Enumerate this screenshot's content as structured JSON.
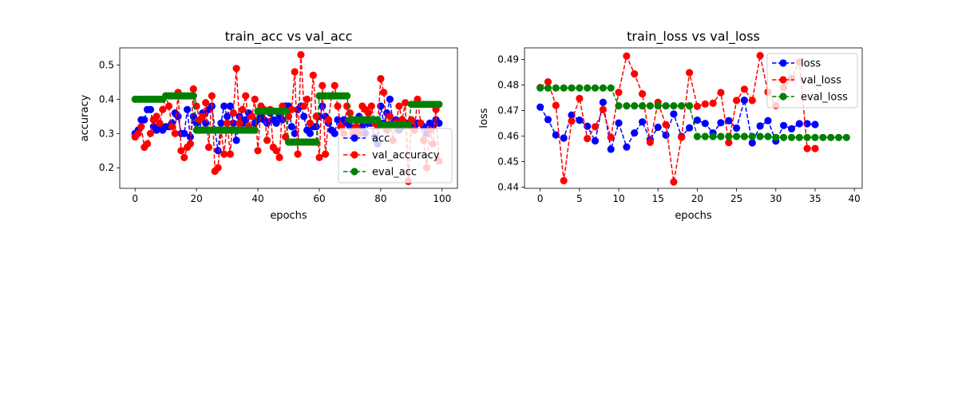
{
  "chart_data": [
    {
      "type": "line",
      "title": "train_acc vs val_acc",
      "xlabel": "epochs",
      "ylabel": "accuracy",
      "xlim": [
        -5,
        105
      ],
      "ylim": [
        0.14,
        0.55
      ],
      "xticks": [
        0,
        20,
        40,
        60,
        80,
        100
      ],
      "yticks": [
        0.2,
        0.3,
        0.4,
        0.5
      ],
      "legend_position": "lower-right",
      "series": [
        {
          "name": "acc",
          "color": "#0000ff",
          "x": [
            0,
            1,
            2,
            3,
            4,
            5,
            6,
            7,
            8,
            9,
            10,
            11,
            12,
            13,
            14,
            15,
            16,
            17,
            18,
            19,
            20,
            21,
            22,
            23,
            24,
            25,
            26,
            27,
            28,
            29,
            30,
            31,
            32,
            33,
            34,
            35,
            36,
            37,
            38,
            39,
            40,
            41,
            42,
            43,
            44,
            45,
            46,
            47,
            48,
            49,
            50,
            51,
            52,
            53,
            54,
            55,
            56,
            57,
            58,
            59,
            60,
            61,
            62,
            63,
            64,
            65,
            66,
            67,
            68,
            69,
            70,
            71,
            72,
            73,
            74,
            75,
            76,
            77,
            78,
            79,
            80,
            81,
            82,
            83,
            84,
            85,
            86,
            87,
            88,
            89,
            90,
            91,
            92,
            93,
            94,
            95,
            96,
            97,
            98,
            99
          ],
          "values": [
            0.3,
            0.31,
            0.34,
            0.34,
            0.37,
            0.37,
            0.32,
            0.31,
            0.32,
            0.31,
            0.32,
            0.32,
            0.33,
            0.36,
            0.35,
            0.3,
            0.3,
            0.37,
            0.29,
            0.35,
            0.33,
            0.31,
            0.36,
            0.33,
            0.37,
            0.38,
            0.31,
            0.25,
            0.33,
            0.38,
            0.35,
            0.38,
            0.33,
            0.28,
            0.35,
            0.33,
            0.34,
            0.36,
            0.35,
            0.33,
            0.34,
            0.35,
            0.34,
            0.33,
            0.36,
            0.34,
            0.33,
            0.35,
            0.34,
            0.38,
            0.38,
            0.32,
            0.3,
            0.37,
            0.38,
            0.35,
            0.31,
            0.3,
            0.32,
            0.32,
            0.35,
            0.38,
            0.35,
            0.33,
            0.31,
            0.3,
            0.34,
            0.32,
            0.34,
            0.33,
            0.32,
            0.3,
            0.3,
            0.35,
            0.32,
            0.3,
            0.33,
            0.33,
            0.29,
            0.27,
            0.38,
            0.33,
            0.36,
            0.4,
            0.33,
            0.34,
            0.31,
            0.32,
            0.33,
            0.33,
            0.32,
            0.32,
            0.33,
            0.33,
            0.32,
            0.3,
            0.33,
            0.32,
            0.34,
            0.33
          ]
        },
        {
          "name": "val_accuracy",
          "color": "#ff0000",
          "x": [
            0,
            1,
            2,
            3,
            4,
            5,
            6,
            7,
            8,
            9,
            10,
            11,
            12,
            13,
            14,
            15,
            16,
            17,
            18,
            19,
            20,
            21,
            22,
            23,
            24,
            25,
            26,
            27,
            28,
            29,
            30,
            31,
            32,
            33,
            34,
            35,
            36,
            37,
            38,
            39,
            40,
            41,
            42,
            43,
            44,
            45,
            46,
            47,
            48,
            49,
            50,
            51,
            52,
            53,
            54,
            55,
            56,
            57,
            58,
            59,
            60,
            61,
            62,
            63,
            64,
            65,
            66,
            67,
            68,
            69,
            70,
            71,
            72,
            73,
            74,
            75,
            76,
            77,
            78,
            79,
            80,
            81,
            82,
            83,
            84,
            85,
            86,
            87,
            88,
            89,
            90,
            91,
            92,
            93,
            94,
            95,
            96,
            97,
            98,
            99
          ],
          "values": [
            0.29,
            0.3,
            0.32,
            0.26,
            0.27,
            0.3,
            0.34,
            0.35,
            0.33,
            0.37,
            0.41,
            0.38,
            0.32,
            0.3,
            0.42,
            0.25,
            0.23,
            0.26,
            0.27,
            0.43,
            0.38,
            0.34,
            0.35,
            0.39,
            0.26,
            0.41,
            0.19,
            0.2,
            0.31,
            0.24,
            0.33,
            0.24,
            0.36,
            0.49,
            0.33,
            0.37,
            0.41,
            0.32,
            0.35,
            0.4,
            0.25,
            0.38,
            0.37,
            0.28,
            0.37,
            0.26,
            0.25,
            0.23,
            0.38,
            0.29,
            0.35,
            0.37,
            0.48,
            0.24,
            0.53,
            0.38,
            0.4,
            0.33,
            0.47,
            0.35,
            0.23,
            0.44,
            0.24,
            0.34,
            0.41,
            0.44,
            0.38,
            0.32,
            0.3,
            0.38,
            0.36,
            0.3,
            0.32,
            0.3,
            0.38,
            0.37,
            0.36,
            0.38,
            0.33,
            0.32,
            0.46,
            0.42,
            0.31,
            0.35,
            0.28,
            0.33,
            0.38,
            0.34,
            0.39,
            0.16,
            0.34,
            0.31,
            0.4,
            0.33,
            0.28,
            0.2,
            0.31,
            0.27,
            0.37,
            0.22
          ]
        },
        {
          "name": "eval_acc",
          "color": "#008000",
          "x": [
            0,
            1,
            2,
            3,
            4,
            5,
            6,
            7,
            8,
            9,
            10,
            11,
            12,
            13,
            14,
            15,
            16,
            17,
            18,
            19,
            20,
            21,
            22,
            23,
            24,
            25,
            26,
            27,
            28,
            29,
            30,
            31,
            32,
            33,
            34,
            35,
            36,
            37,
            38,
            39,
            40,
            41,
            42,
            43,
            44,
            45,
            46,
            47,
            48,
            49,
            50,
            51,
            52,
            53,
            54,
            55,
            56,
            57,
            58,
            59,
            60,
            61,
            62,
            63,
            64,
            65,
            66,
            67,
            68,
            69,
            70,
            71,
            72,
            73,
            74,
            75,
            76,
            77,
            78,
            79,
            80,
            81,
            82,
            83,
            84,
            85,
            86,
            87,
            88,
            89,
            90,
            91,
            92,
            93,
            94,
            95,
            96,
            97,
            98,
            99
          ],
          "values": [
            0.4,
            0.4,
            0.4,
            0.4,
            0.4,
            0.4,
            0.4,
            0.4,
            0.4,
            0.4,
            0.41,
            0.41,
            0.41,
            0.41,
            0.41,
            0.41,
            0.41,
            0.41,
            0.41,
            0.41,
            0.31,
            0.31,
            0.31,
            0.31,
            0.31,
            0.31,
            0.31,
            0.31,
            0.31,
            0.31,
            0.31,
            0.31,
            0.31,
            0.31,
            0.31,
            0.31,
            0.31,
            0.31,
            0.31,
            0.31,
            0.365,
            0.365,
            0.365,
            0.365,
            0.365,
            0.365,
            0.365,
            0.365,
            0.365,
            0.365,
            0.275,
            0.275,
            0.275,
            0.275,
            0.275,
            0.275,
            0.275,
            0.275,
            0.275,
            0.275,
            0.41,
            0.41,
            0.41,
            0.41,
            0.41,
            0.41,
            0.41,
            0.41,
            0.41,
            0.41,
            0.34,
            0.34,
            0.34,
            0.34,
            0.34,
            0.34,
            0.34,
            0.34,
            0.34,
            0.34,
            0.325,
            0.325,
            0.325,
            0.325,
            0.325,
            0.325,
            0.325,
            0.325,
            0.325,
            0.325,
            0.385,
            0.385,
            0.385,
            0.385,
            0.385,
            0.385,
            0.385,
            0.385,
            0.385,
            0.385
          ]
        }
      ]
    },
    {
      "type": "line",
      "title": "train_loss vs val_loss",
      "xlabel": "epochs",
      "ylabel": "loss",
      "xlim": [
        -2,
        41
      ],
      "ylim": [
        0.4395,
        0.4945
      ],
      "xticks": [
        0,
        5,
        10,
        15,
        20,
        25,
        30,
        35,
        40
      ],
      "yticks": [
        0.44,
        0.45,
        0.46,
        0.47,
        0.48,
        0.49
      ],
      "legend_position": "upper-right",
      "series": [
        {
          "name": "loss",
          "color": "#0000ff",
          "x": [
            0,
            1,
            2,
            3,
            4,
            5,
            6,
            7,
            8,
            9,
            10,
            11,
            12,
            13,
            14,
            15,
            16,
            17,
            18,
            19,
            20,
            21,
            22,
            23,
            24,
            25,
            26,
            27,
            28,
            29,
            30,
            31,
            32,
            33,
            34,
            35
          ],
          "values": [
            0.4713,
            0.4664,
            0.4604,
            0.4592,
            0.4682,
            0.4662,
            0.4638,
            0.4581,
            0.4732,
            0.4548,
            0.4651,
            0.4557,
            0.4612,
            0.4655,
            0.4586,
            0.4634,
            0.4603,
            0.4686,
            0.4598,
            0.4632,
            0.4662,
            0.4649,
            0.4612,
            0.4652,
            0.466,
            0.4631,
            0.474,
            0.4573,
            0.4639,
            0.466,
            0.458,
            0.4641,
            0.4628,
            0.4648,
            0.4648,
            0.4645
          ]
        },
        {
          "name": "val_loss",
          "color": "#ff0000",
          "x": [
            0,
            1,
            2,
            3,
            4,
            5,
            6,
            7,
            8,
            9,
            10,
            11,
            12,
            13,
            14,
            15,
            16,
            17,
            18,
            19,
            20,
            21,
            22,
            23,
            24,
            25,
            26,
            27,
            28,
            29,
            30,
            31,
            32,
            33,
            34,
            35
          ],
          "values": [
            0.479,
            0.4812,
            0.472,
            0.4425,
            0.4658,
            0.4747,
            0.459,
            0.4636,
            0.4703,
            0.4595,
            0.4771,
            0.4913,
            0.4843,
            0.4765,
            0.4575,
            0.4732,
            0.4644,
            0.442,
            0.4595,
            0.4848,
            0.4716,
            0.4725,
            0.4728,
            0.477,
            0.4574,
            0.4739,
            0.4783,
            0.4739,
            0.4915,
            0.4772,
            0.4719,
            0.4789,
            0.4825,
            0.489,
            0.4551,
            0.4551
          ]
        },
        {
          "name": "eval_loss",
          "color": "#008000",
          "x": [
            0,
            1,
            2,
            3,
            4,
            5,
            6,
            7,
            8,
            9,
            10,
            11,
            12,
            13,
            14,
            15,
            16,
            17,
            18,
            19,
            20,
            21,
            22,
            23,
            24,
            25,
            26,
            27,
            28,
            29,
            30,
            31,
            32,
            33,
            34,
            35,
            36,
            37,
            38,
            39
          ],
          "values": [
            0.4788,
            0.4788,
            0.4788,
            0.4788,
            0.4788,
            0.4788,
            0.4788,
            0.4788,
            0.4788,
            0.4788,
            0.4718,
            0.4718,
            0.4718,
            0.4718,
            0.4718,
            0.4718,
            0.4718,
            0.4718,
            0.4718,
            0.4718,
            0.4598,
            0.4598,
            0.4598,
            0.4598,
            0.4598,
            0.4598,
            0.4598,
            0.4598,
            0.4598,
            0.4598,
            0.4594,
            0.4594,
            0.4594,
            0.4594,
            0.4594,
            0.4594,
            0.4594,
            0.4594,
            0.4594,
            0.4594
          ]
        }
      ]
    }
  ]
}
